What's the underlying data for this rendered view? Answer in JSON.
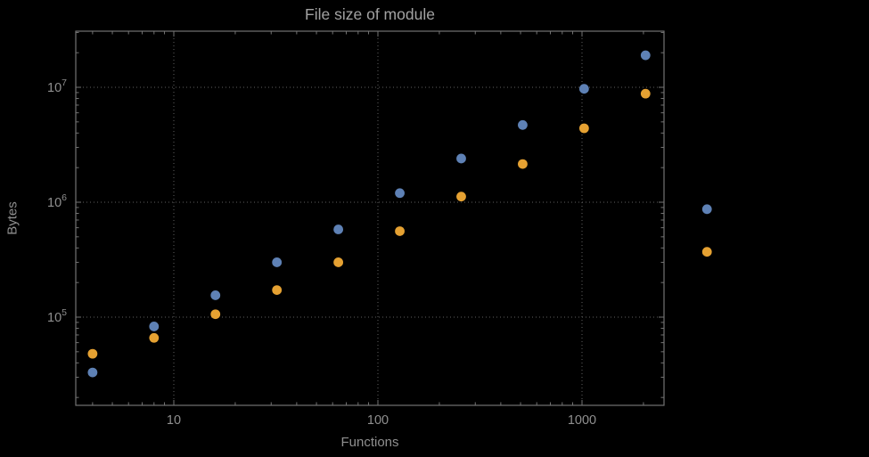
{
  "colors": {
    "background": "#000000",
    "frame": "#737373",
    "grid": "#5f5f5f",
    "tick_text": "#8f8f8f",
    "title_text": "#a2a2a2",
    "axis_label_text": "#8f8f8f"
  },
  "chart_data": {
    "type": "scatter",
    "title": "File size of module",
    "xlabel": "Functions",
    "ylabel": "Bytes",
    "x_scale": "log",
    "y_scale": "log",
    "grid": "dotted",
    "legend": "none",
    "x_tick_labels": [
      "10",
      "100",
      "1000"
    ],
    "x_ticks": [
      10,
      100,
      1000
    ],
    "y_ticks": [
      100000,
      1000000,
      10000000
    ],
    "x_frame_range": [
      3.3,
      2500
    ],
    "y_frame_range": [
      17000,
      30000000
    ],
    "x": [
      4,
      8,
      16,
      32,
      64,
      128,
      256,
      512,
      1024,
      2048,
      4096
    ],
    "series": [
      {
        "name": "series-blue",
        "color": "#5e81b5",
        "values": [
          33000,
          83000,
          155000,
          300000,
          580000,
          1200000,
          2400000,
          4700000,
          9700000,
          19000000,
          870000
        ]
      },
      {
        "name": "series-orange",
        "color": "#e5a132",
        "values": [
          48000,
          66000,
          106000,
          172000,
          300000,
          560000,
          1120000,
          2150000,
          4400000,
          8800000,
          370000
        ]
      }
    ]
  }
}
